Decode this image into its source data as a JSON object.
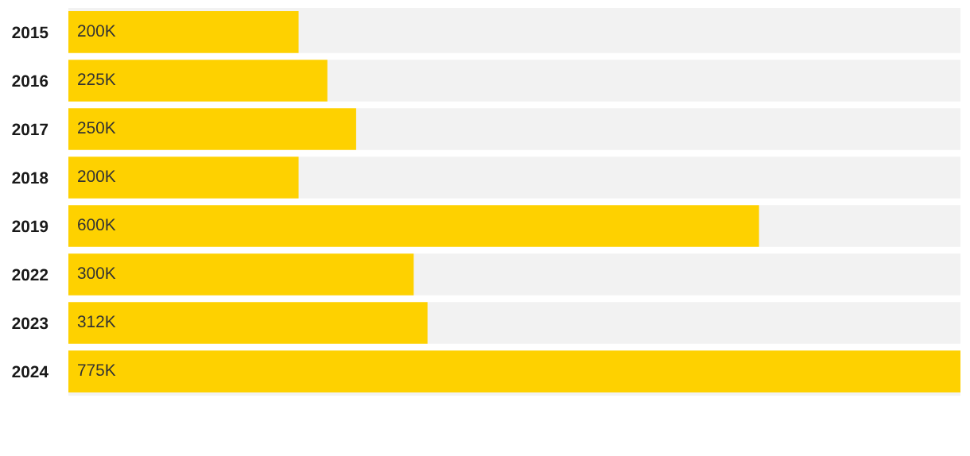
{
  "chart_data": {
    "type": "bar",
    "orientation": "horizontal",
    "categories": [
      "2015",
      "2016",
      "2017",
      "2018",
      "2019",
      "2022",
      "2023",
      "2024"
    ],
    "values": [
      200,
      225,
      250,
      200,
      600,
      300,
      312,
      775
    ],
    "value_labels": [
      "200K",
      "225K",
      "250K",
      "200K",
      "600K",
      "300K",
      "312K",
      "775K"
    ],
    "color": "#fed100",
    "xlim": [
      0,
      775
    ],
    "tick_labels": "y",
    "grid": false,
    "legend": false
  }
}
